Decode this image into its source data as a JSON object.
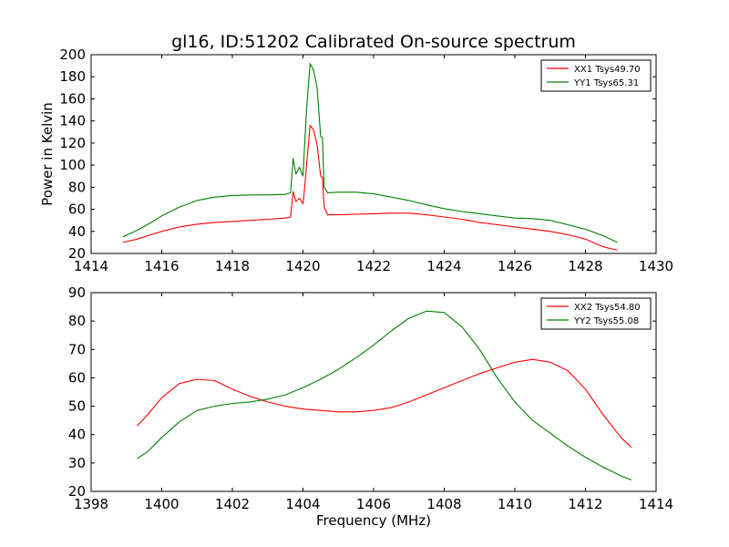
{
  "figure": {
    "title": "gl16, ID:51202 Calibrated On-source spectrum"
  },
  "chart_data": [
    {
      "type": "line",
      "title": "gl16, ID:51202 Calibrated On-source spectrum",
      "xlabel": "",
      "ylabel": "Power in Kelvin",
      "xlim": [
        1414,
        1430
      ],
      "ylim": [
        20,
        200
      ],
      "xticks": [
        1414,
        1416,
        1418,
        1420,
        1422,
        1424,
        1426,
        1428,
        1430
      ],
      "yticks": [
        20,
        40,
        60,
        80,
        100,
        120,
        140,
        160,
        180,
        200
      ],
      "grid": false,
      "legend_position": "top-right",
      "series": [
        {
          "name": "XX1 Tsys49.70",
          "color": "#ff0000",
          "x": [
            1414.9,
            1415.3,
            1415.7,
            1416.0,
            1416.5,
            1417.0,
            1417.5,
            1418.0,
            1418.5,
            1419.0,
            1419.5,
            1419.65,
            1419.72,
            1419.8,
            1419.9,
            1420.0,
            1420.05,
            1420.1,
            1420.2,
            1420.3,
            1420.4,
            1420.5,
            1420.55,
            1420.6,
            1420.7,
            1421.0,
            1421.5,
            1422.0,
            1422.5,
            1423.0,
            1423.5,
            1424.0,
            1424.5,
            1425.0,
            1425.5,
            1426.0,
            1426.5,
            1427.0,
            1427.5,
            1428.0,
            1428.5,
            1428.9
          ],
          "y": [
            30,
            33,
            37,
            40,
            44,
            46.5,
            48,
            49,
            50,
            51,
            52,
            53,
            76,
            67,
            70,
            65,
            80,
            100,
            136,
            132,
            118,
            90,
            89,
            62,
            55,
            55,
            55.5,
            56,
            56.5,
            56.5,
            55,
            53,
            51,
            48,
            46,
            44,
            42,
            40,
            37,
            33,
            26,
            23
          ]
        },
        {
          "name": "YY1 Tsys65.31",
          "color": "#008000",
          "x": [
            1414.9,
            1415.3,
            1415.7,
            1416.0,
            1416.5,
            1417.0,
            1417.5,
            1418.0,
            1418.5,
            1419.0,
            1419.5,
            1419.65,
            1419.72,
            1419.8,
            1419.9,
            1420.0,
            1420.05,
            1420.1,
            1420.2,
            1420.3,
            1420.4,
            1420.5,
            1420.55,
            1420.6,
            1420.7,
            1421.0,
            1421.5,
            1422.0,
            1422.5,
            1423.0,
            1423.5,
            1424.0,
            1424.5,
            1425.0,
            1425.5,
            1426.0,
            1426.5,
            1427.0,
            1427.5,
            1428.0,
            1428.5,
            1428.9
          ],
          "y": [
            35,
            41,
            48,
            54,
            62,
            68,
            71,
            72.5,
            73,
            73,
            73.5,
            75,
            106,
            92,
            98,
            90,
            120,
            150,
            192,
            186,
            170,
            126,
            125,
            80,
            75,
            75.5,
            75.5,
            74,
            71,
            68,
            64,
            60.5,
            58,
            56,
            54,
            52,
            51.5,
            50,
            46,
            42,
            36,
            30
          ]
        }
      ]
    },
    {
      "type": "line",
      "title": "",
      "xlabel": "Frequency (MHz)",
      "ylabel": "",
      "xlim": [
        1398,
        1414
      ],
      "ylim": [
        20,
        90
      ],
      "xticks": [
        1398,
        1400,
        1402,
        1404,
        1406,
        1408,
        1410,
        1412,
        1414
      ],
      "yticks": [
        20,
        30,
        40,
        50,
        60,
        70,
        80,
        90
      ],
      "grid": false,
      "legend_position": "top-right",
      "series": [
        {
          "name": "XX2 Tsys54.80",
          "color": "#ff0000",
          "x": [
            1399.3,
            1399.6,
            1400.0,
            1400.5,
            1401.0,
            1401.5,
            1402.0,
            1402.5,
            1403.0,
            1403.5,
            1404.0,
            1404.5,
            1405.0,
            1405.5,
            1406.0,
            1406.5,
            1407.0,
            1407.5,
            1408.0,
            1408.5,
            1409.0,
            1409.5,
            1410.0,
            1410.5,
            1411.0,
            1411.5,
            1412.0,
            1412.5,
            1413.0,
            1413.3
          ],
          "y": [
            43,
            47,
            53,
            58,
            59.5,
            59,
            56,
            53.5,
            51.5,
            50,
            49,
            48.5,
            48,
            48,
            48.5,
            49.5,
            51.5,
            54,
            56.5,
            59,
            61.5,
            63.5,
            65.5,
            66.5,
            65.5,
            62.5,
            56,
            47,
            39,
            35.5
          ]
        },
        {
          "name": "YY2 Tsys55.08",
          "color": "#008000",
          "x": [
            1399.3,
            1399.6,
            1400.0,
            1400.5,
            1401.0,
            1401.5,
            1402.0,
            1402.5,
            1403.0,
            1403.5,
            1404.0,
            1404.5,
            1405.0,
            1405.5,
            1406.0,
            1406.5,
            1407.0,
            1407.5,
            1408.0,
            1408.5,
            1409.0,
            1409.5,
            1410.0,
            1410.5,
            1411.0,
            1411.5,
            1412.0,
            1412.5,
            1413.0,
            1413.3
          ],
          "y": [
            31.5,
            34,
            39,
            44.5,
            48.5,
            50,
            51,
            51.5,
            52.5,
            54,
            56.5,
            59.5,
            63,
            67,
            71.5,
            76.5,
            81,
            83.5,
            83,
            78,
            70,
            60,
            51.5,
            45,
            40.5,
            36,
            32,
            28.5,
            25.5,
            24
          ]
        }
      ]
    }
  ]
}
